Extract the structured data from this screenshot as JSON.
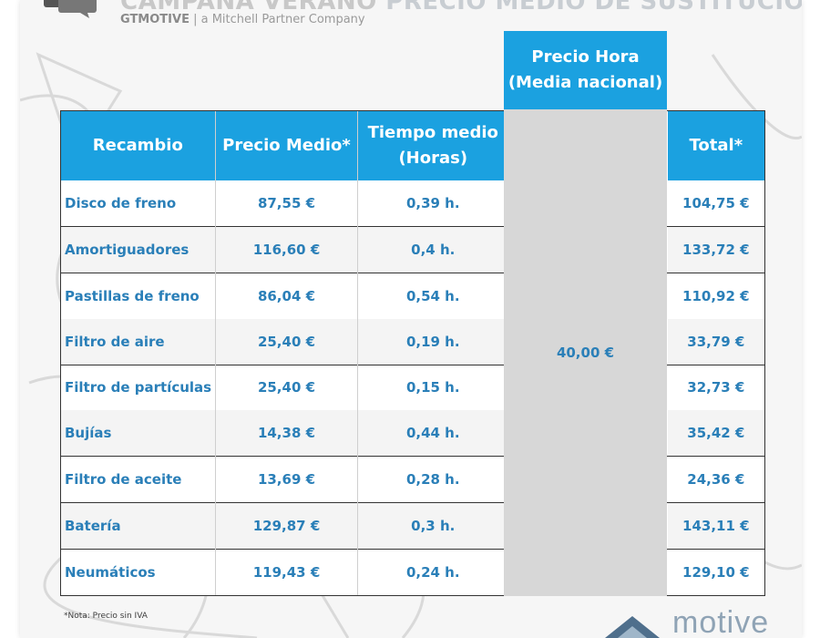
{
  "header": {
    "title_prefix": "CAMPAÑA VERANO",
    "title_main": "PRECIO MEDIO DE SUSTITUCIÓN",
    "subtitle_brand": "GTMOTIVE",
    "subtitle_rest": "| a Mitchell Partner Company"
  },
  "table": {
    "columns": {
      "part": "Recambio",
      "avg_price": "Precio Medio*",
      "avg_time_line1": "Tiempo medio",
      "avg_time_line2": "(Horas)",
      "hour_price_line1": "Precio Hora",
      "hour_price_line2": "(Media nacional)",
      "total": "Total*"
    },
    "hour_price_value": "40,00 €",
    "rows": [
      {
        "part": "Disco de freno",
        "price": "87,55 €",
        "time": "0,39 h.",
        "total": "104,75 €"
      },
      {
        "part": "Amortiguadores",
        "price": "116,60 €",
        "time": "0,4 h.",
        "total": "133,72 €"
      },
      {
        "part": "Pastillas de freno",
        "price": "86,04 €",
        "time": "0,54 h.",
        "total": "110,92 €"
      },
      {
        "part": "Filtro de aire",
        "price": "25,40 €",
        "time": "0,19 h.",
        "total": "33,79 €"
      },
      {
        "part": "Filtro de partículas",
        "price": "25,40 €",
        "time": "0,15 h.",
        "total": "32,73 €"
      },
      {
        "part": "Bujías",
        "price": "14,38 €",
        "time": "0,44 h.",
        "total": "35,42 €"
      },
      {
        "part": "Filtro de aceite",
        "price": "13,69 €",
        "time": "0,28 h.",
        "total": "24,36 €"
      },
      {
        "part": "Batería",
        "price": "129,87 €",
        "time": "0,3 h.",
        "total": "143,11 €"
      },
      {
        "part": "Neumáticos",
        "price": "119,43 €",
        "time": "0,24 h.",
        "total": "129,10 €"
      }
    ]
  },
  "footer": {
    "note": "*Nota: Precio sin IVA",
    "logo_text": "motive"
  },
  "colors": {
    "header_blue": "#1ba1e0",
    "text_blue": "#2a7fb8",
    "hour_column_gray": "#d7d7d7"
  }
}
